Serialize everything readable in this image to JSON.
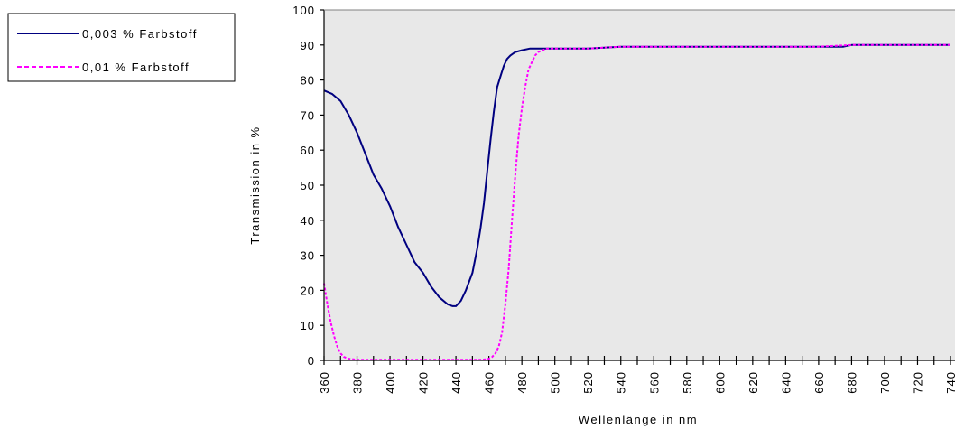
{
  "chart_data": {
    "type": "line",
    "xlabel": "Wellenlänge in nm",
    "ylabel": "Transmission in %",
    "xlim": [
      360,
      740
    ],
    "ylim": [
      0,
      100
    ],
    "x_ticks": [
      360,
      370,
      380,
      390,
      400,
      410,
      420,
      430,
      440,
      450,
      460,
      470,
      480,
      490,
      500,
      510,
      520,
      530,
      540,
      550,
      560,
      570,
      580,
      590,
      600,
      610,
      620,
      630,
      640,
      650,
      660,
      670,
      680,
      690,
      700,
      710,
      720,
      730,
      740
    ],
    "x_tick_labels": [
      "360",
      "380",
      "400",
      "420",
      "440",
      "460",
      "480",
      "500",
      "520",
      "540",
      "560",
      "580",
      "600",
      "620",
      "640",
      "660",
      "680",
      "700",
      "720",
      "740"
    ],
    "y_ticks": [
      0,
      10,
      20,
      30,
      40,
      50,
      60,
      70,
      80,
      90,
      100
    ],
    "y_tick_labels": [
      "0",
      "10",
      "20",
      "30",
      "40",
      "50",
      "60",
      "70",
      "80",
      "90",
      "100"
    ],
    "grid": false,
    "plot_background": "#e8e8e8",
    "legend_placement": "top-left, outside plot",
    "series": [
      {
        "name": "0,003 % Farbstoff",
        "color": "#000080",
        "style": "solid",
        "x": [
          360,
          365,
          370,
          375,
          380,
          385,
          390,
          395,
          400,
          405,
          410,
          415,
          420,
          425,
          430,
          435,
          438,
          440,
          443,
          446,
          450,
          453,
          455,
          457,
          459,
          461,
          463,
          465,
          467,
          469,
          471,
          473,
          476,
          480,
          485,
          490,
          500,
          520,
          540,
          560,
          580,
          600,
          620,
          640,
          660,
          675,
          680,
          700,
          720,
          740
        ],
        "y": [
          77,
          76,
          74,
          70,
          65,
          59,
          53,
          49,
          44,
          38,
          33,
          28,
          25,
          21,
          18,
          16,
          15.5,
          15.5,
          17,
          20,
          25,
          32,
          38,
          45,
          54,
          63,
          71,
          78,
          81,
          84,
          86,
          87,
          88,
          88.5,
          89,
          89,
          89,
          89,
          89.5,
          89.5,
          89.5,
          89.5,
          89.5,
          89.5,
          89.5,
          89.5,
          90,
          90,
          90,
          90
        ]
      },
      {
        "name": "0,01 % Farbstoff",
        "color": "#ff00ff",
        "style": "dashed",
        "x": [
          360,
          362,
          364,
          366,
          368,
          370,
          372,
          375,
          378,
          380,
          390,
          400,
          410,
          420,
          430,
          440,
          450,
          455,
          458,
          460,
          462,
          464,
          466,
          468,
          470,
          472,
          474,
          476,
          478,
          480,
          482,
          484,
          486,
          488,
          490,
          495,
          500,
          510,
          520,
          540,
          560,
          580,
          600,
          620,
          640,
          660,
          680,
          700,
          720,
          740
        ],
        "y": [
          22,
          16,
          11,
          7,
          4,
          2,
          1,
          0.5,
          0.3,
          0.2,
          0.2,
          0.2,
          0.2,
          0.2,
          0.2,
          0.2,
          0.2,
          0.2,
          0.3,
          0.5,
          1,
          2,
          4,
          8,
          16,
          26,
          40,
          53,
          64,
          72,
          78,
          83,
          85,
          87,
          88,
          89,
          89,
          89,
          89,
          89.5,
          89.5,
          89.5,
          89.5,
          89.5,
          89.5,
          89.5,
          90,
          90,
          90,
          90
        ]
      }
    ]
  }
}
